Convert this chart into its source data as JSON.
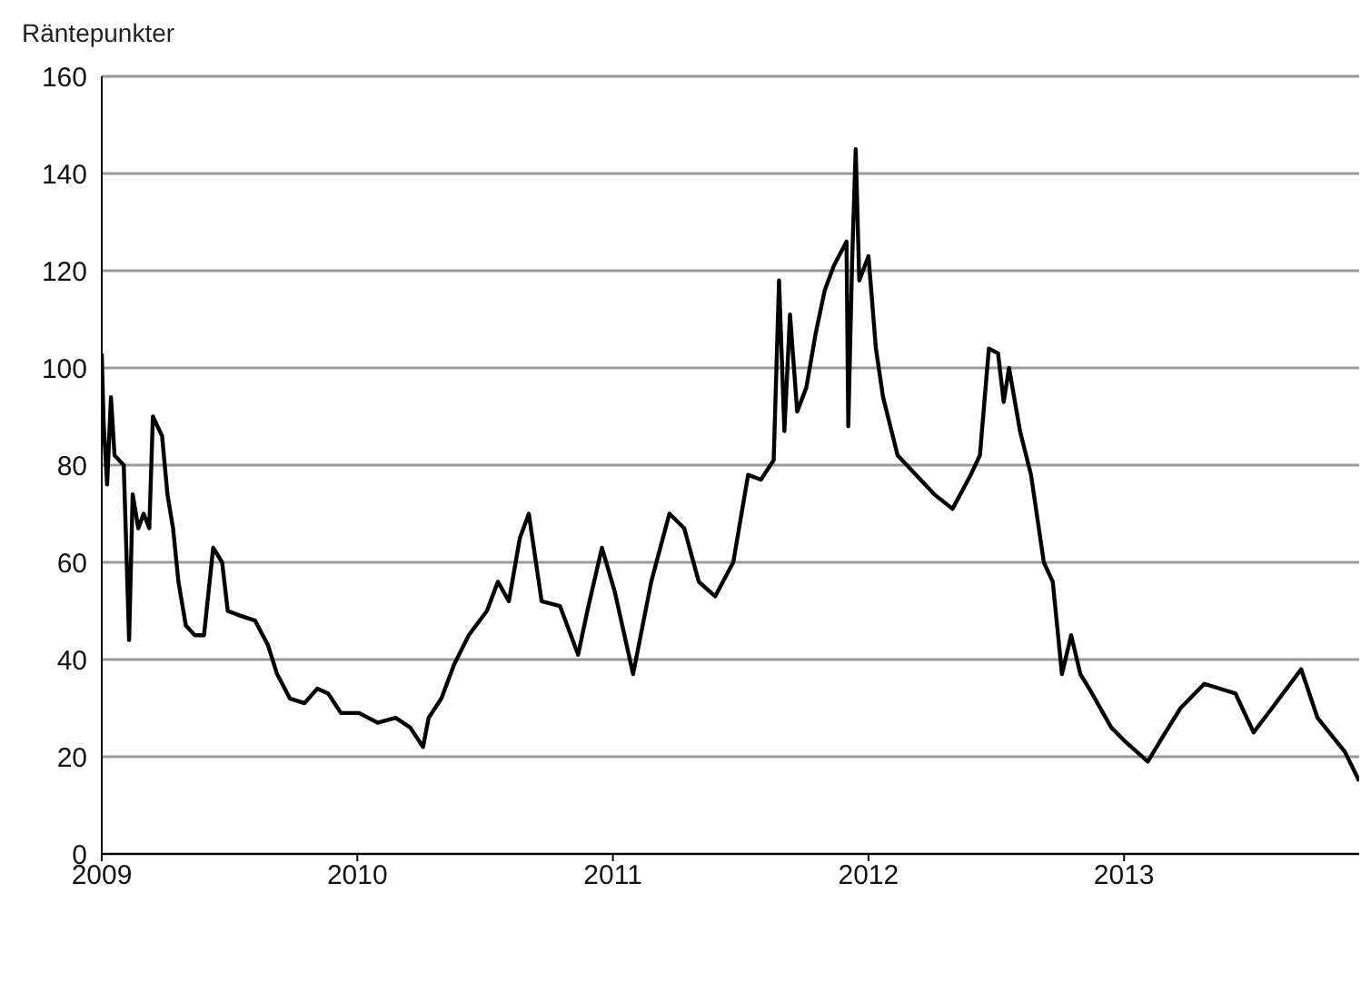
{
  "chart_data": {
    "type": "line",
    "ylabel": "Räntepunkter",
    "x": [
      2009.0,
      2009.007,
      2009.021,
      2009.036,
      2009.05,
      2009.086,
      2009.107,
      2009.121,
      2009.143,
      2009.164,
      2009.186,
      2009.2,
      2009.236,
      2009.257,
      2009.279,
      2009.3,
      2009.329,
      2009.364,
      2009.4,
      2009.436,
      2009.471,
      2009.493,
      2009.543,
      2009.6,
      2009.65,
      2009.686,
      2009.736,
      2009.793,
      2009.843,
      2009.886,
      2009.936,
      2010.007,
      2010.079,
      2010.15,
      2010.207,
      2010.257,
      2010.279,
      2010.329,
      2010.379,
      2010.436,
      2010.507,
      2010.55,
      2010.593,
      2010.636,
      2010.671,
      2010.721,
      2010.793,
      2010.864,
      2010.9,
      2010.957,
      2011.007,
      2011.079,
      2011.15,
      2011.221,
      2011.279,
      2011.336,
      2011.4,
      2011.471,
      2011.529,
      2011.579,
      2011.629,
      2011.65,
      2011.671,
      2011.693,
      2011.721,
      2011.757,
      2011.793,
      2011.829,
      2011.864,
      2011.914,
      2011.921,
      2011.936,
      2011.95,
      2011.964,
      2012.0,
      2012.029,
      2012.057,
      2012.114,
      2012.186,
      2012.257,
      2012.329,
      2012.4,
      2012.436,
      2012.471,
      2012.507,
      2012.529,
      2012.55,
      2012.593,
      2012.636,
      2012.686,
      2012.721,
      2012.757,
      2012.793,
      2012.829,
      2012.864,
      2012.95,
      2013.007,
      2013.093,
      2013.15,
      2013.221,
      2013.314,
      2013.436,
      2013.507,
      2013.579,
      2013.693,
      2013.757,
      2013.864,
      2013.92
    ],
    "series": [
      {
        "color": "#000000",
        "values": [
          103,
          89,
          76,
          94,
          82,
          80,
          44,
          74,
          67,
          70,
          67,
          90,
          86,
          74,
          67,
          56,
          47,
          45,
          45,
          63,
          60,
          50,
          49,
          48,
          43,
          37,
          32,
          31,
          34,
          33,
          29,
          29,
          27,
          28,
          26,
          22,
          28,
          32,
          39,
          45,
          50,
          56,
          52,
          65,
          70,
          52,
          51,
          41,
          50,
          63,
          54,
          37,
          56,
          70,
          67,
          56,
          53,
          60,
          78,
          77,
          81,
          118,
          87,
          111,
          91,
          96,
          107,
          116,
          121,
          126,
          88,
          122,
          145,
          118,
          123,
          104,
          94,
          82,
          78,
          74,
          71,
          78,
          82,
          104,
          103,
          93,
          100,
          87,
          78,
          60,
          56,
          37,
          45,
          37,
          34,
          26,
          23,
          19,
          24,
          30,
          35,
          33,
          25,
          30,
          38,
          28,
          21,
          15
        ]
      }
    ],
    "xlim": [
      2009,
      2013.92
    ],
    "xticks": [
      2009,
      2010,
      2011,
      2012,
      2013
    ],
    "ylim": [
      0,
      160
    ],
    "yticks": [
      0,
      20,
      40,
      60,
      80,
      100,
      120,
      140,
      160
    ],
    "grid": "y",
    "legend": false,
    "marker": "none",
    "line_style": "solid"
  }
}
